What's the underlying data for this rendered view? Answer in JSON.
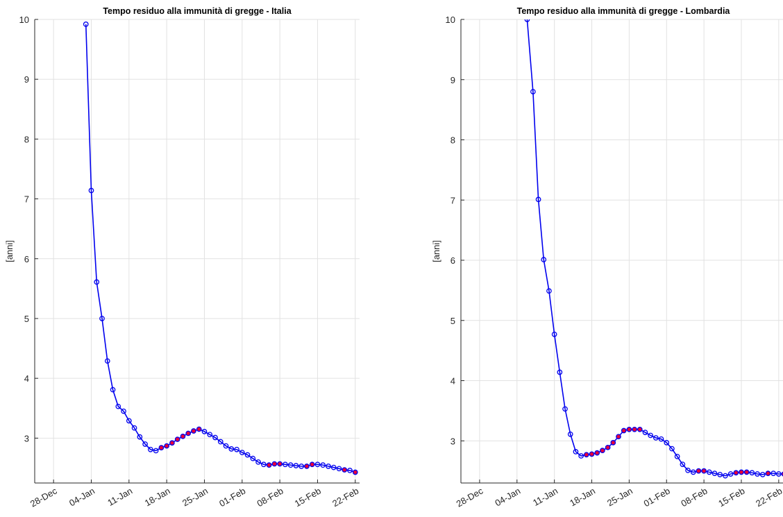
{
  "chart_data": [
    {
      "type": "line",
      "title": "Tempo residuo alla immunità di gregge - Italia",
      "xlabel": "",
      "ylabel": "[anni]",
      "x_tick_labels": [
        "28-Dec",
        "04-Jan",
        "11-Jan",
        "18-Jan",
        "25-Jan",
        "01-Feb",
        "08-Feb",
        "15-Feb",
        "22-Feb"
      ],
      "y_tick_labels": [
        "3",
        "4",
        "5",
        "6",
        "7",
        "8",
        "9",
        "10"
      ],
      "xlim_days": [
        -3.5,
        56.8
      ],
      "ylim": [
        2.25,
        10
      ],
      "grid": true,
      "line_color": "#0000ee",
      "marker_edge_color": "#0000ee",
      "highlight_fill_color": "#e8003a",
      "series": [
        {
          "x": [
            6,
            7,
            8,
            9,
            10,
            11,
            12,
            13,
            14,
            15,
            16,
            17,
            18,
            19,
            20,
            21,
            22,
            23,
            24,
            25,
            26,
            27,
            28,
            29,
            30,
            31,
            32,
            33,
            34,
            35,
            36,
            37,
            38,
            39,
            40,
            41,
            42,
            43,
            44,
            45,
            46,
            47,
            48,
            49,
            50,
            51,
            52,
            53,
            54,
            55,
            56
          ],
          "y": [
            9.92,
            7.14,
            5.61,
            5.0,
            4.29,
            3.81,
            3.53,
            3.45,
            3.29,
            3.17,
            3.02,
            2.9,
            2.81,
            2.79,
            2.84,
            2.87,
            2.92,
            2.98,
            3.03,
            3.08,
            3.12,
            3.15,
            3.11,
            3.06,
            3.01,
            2.94,
            2.87,
            2.82,
            2.81,
            2.76,
            2.72,
            2.66,
            2.6,
            2.56,
            2.55,
            2.57,
            2.57,
            2.56,
            2.55,
            2.54,
            2.53,
            2.53,
            2.56,
            2.56,
            2.55,
            2.53,
            2.51,
            2.49,
            2.47,
            2.46,
            2.43
          ],
          "highlighted": [
            20,
            21,
            22,
            23,
            24,
            25,
            26,
            27,
            40,
            41,
            42,
            47,
            48,
            54,
            56
          ]
        }
      ]
    },
    {
      "type": "line",
      "title": "Tempo residuo alla immunità di gregge - Lombardia",
      "xlabel": "",
      "ylabel": "[anni]",
      "x_tick_labels": [
        "28-Dec",
        "04-Jan",
        "11-Jan",
        "18-Jan",
        "25-Jan",
        "01-Feb",
        "08-Feb",
        "15-Feb",
        "22-Feb"
      ],
      "y_tick_labels": [
        "3",
        "4",
        "5",
        "6",
        "7",
        "8",
        "9",
        "10"
      ],
      "xlim_days": [
        -3.5,
        56.8
      ],
      "ylim": [
        2.3,
        10
      ],
      "grid": true,
      "line_color": "#0000ee",
      "marker_edge_color": "#0000ee",
      "highlight_fill_color": "#e8003a",
      "series": [
        {
          "x": [
            8.9,
            10,
            11,
            12,
            13,
            14,
            15,
            16,
            17,
            18,
            19,
            20,
            21,
            22,
            23,
            24,
            25,
            26,
            27,
            28,
            29,
            30,
            31,
            32,
            33,
            34,
            35,
            36,
            37,
            38,
            39,
            40,
            41,
            42,
            43,
            44,
            45,
            46,
            47,
            48,
            49,
            50,
            51,
            52,
            53,
            54,
            55,
            56,
            57
          ],
          "y": [
            10.0,
            8.8,
            7.01,
            6.01,
            5.49,
            4.77,
            4.14,
            3.53,
            3.11,
            2.82,
            2.75,
            2.77,
            2.78,
            2.8,
            2.84,
            2.89,
            2.97,
            3.07,
            3.17,
            3.19,
            3.19,
            3.19,
            3.14,
            3.09,
            3.05,
            3.03,
            2.97,
            2.87,
            2.74,
            2.61,
            2.51,
            2.48,
            2.5,
            2.5,
            2.48,
            2.46,
            2.44,
            2.42,
            2.45,
            2.47,
            2.48,
            2.48,
            2.47,
            2.45,
            2.44,
            2.46,
            2.46,
            2.45,
            2.45
          ],
          "highlighted": [
            20,
            21,
            22,
            23,
            24,
            25,
            26,
            27,
            28,
            29,
            30,
            41,
            42,
            48,
            49,
            50,
            54,
            57
          ]
        }
      ]
    }
  ]
}
